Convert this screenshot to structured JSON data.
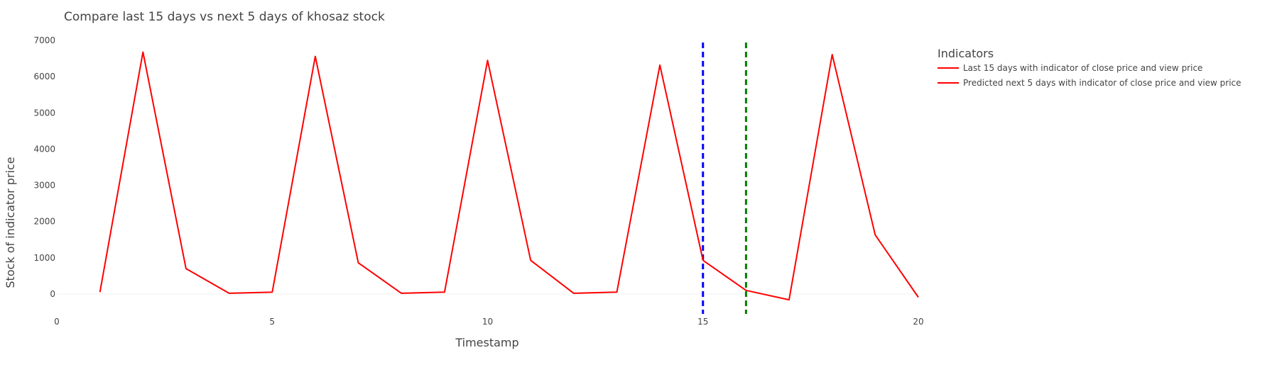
{
  "chart_data": {
    "type": "line",
    "title": "Compare last 15 days vs next 5 days of khosaz stock",
    "xlabel": "Timestamp",
    "ylabel": "Stock of indicator price",
    "xlim": [
      0,
      20
    ],
    "ylim": [
      -550,
      7100
    ],
    "x_ticks": [
      0,
      5,
      10,
      15,
      20
    ],
    "y_ticks": [
      0,
      1000,
      2000,
      3000,
      4000,
      5000,
      6000,
      7000
    ],
    "grid": false,
    "legend_title": "Indicators",
    "legend_position": "top-right outside",
    "series": [
      {
        "name": "Last 15 days with indicator of close price and view price",
        "color": "#ff0000",
        "x": [
          1,
          2,
          3,
          4,
          5,
          6,
          7,
          8,
          9,
          10,
          11,
          12,
          13,
          14,
          15
        ],
        "y": [
          50,
          6680,
          700,
          20,
          50,
          6560,
          860,
          20,
          50,
          6450,
          930,
          20,
          50,
          6320,
          930
        ]
      },
      {
        "name": "Predicted next 5 days with indicator of close price and view price",
        "color": "#ff0000",
        "x": [
          15,
          16,
          17,
          18,
          19,
          20
        ],
        "y": [
          930,
          100,
          -160,
          6610,
          1630,
          -90
        ]
      }
    ],
    "vlines": [
      {
        "x": 15,
        "color": "#0000ff",
        "dash": "dashed"
      },
      {
        "x": 16,
        "color": "#008000",
        "dash": "dashed"
      }
    ]
  }
}
